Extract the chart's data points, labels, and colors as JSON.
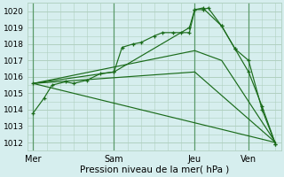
{
  "title": "Pression niveau de la mer( hPa )",
  "bg_color": "#d6eeee",
  "grid_color": "#b0d0c0",
  "line_color": "#1a6b1a",
  "ylim": [
    1011.5,
    1020.5
  ],
  "yticks": [
    1012,
    1013,
    1014,
    1015,
    1016,
    1017,
    1018,
    1019,
    1020
  ],
  "xtick_labels": [
    "Mer",
    "Sam",
    "Jeu",
    "Ven"
  ],
  "xtick_positions": [
    0,
    3,
    6,
    8
  ],
  "xlim": [
    -0.2,
    9.2
  ],
  "vlines": [
    0,
    3,
    6,
    8
  ],
  "vline_color": "#5a9a6a",
  "series": [
    {
      "x": [
        0,
        0.4,
        0.7,
        1.2,
        1.5,
        2.0,
        2.5,
        3.0,
        3.3,
        3.7,
        4.0,
        4.5,
        4.8,
        5.2,
        5.5,
        5.8,
        6.0,
        6.3,
        6.5,
        7.0,
        7.5,
        8.0,
        8.5,
        9.0
      ],
      "y": [
        1013.8,
        1014.7,
        1015.5,
        1015.7,
        1015.6,
        1015.8,
        1016.2,
        1016.3,
        1017.8,
        1018.0,
        1018.1,
        1018.5,
        1018.7,
        1018.7,
        1018.7,
        1018.7,
        1020.1,
        1020.1,
        1020.2,
        1019.1,
        1017.7,
        1017.0,
        1014.0,
        1011.9
      ],
      "marker": true
    },
    {
      "x": [
        0,
        3.0,
        5.8,
        6.0,
        6.3,
        7.0,
        7.5,
        8.0,
        8.5,
        9.0
      ],
      "y": [
        1015.6,
        1016.3,
        1019.0,
        1020.1,
        1020.2,
        1019.1,
        1017.7,
        1016.3,
        1014.2,
        1011.9
      ],
      "marker": true
    },
    {
      "x": [
        0,
        6.0,
        7.0,
        9.0
      ],
      "y": [
        1015.6,
        1017.6,
        1017.0,
        1012.0
      ],
      "marker": false
    },
    {
      "x": [
        0,
        6.0,
        9.0
      ],
      "y": [
        1015.6,
        1016.3,
        1012.0
      ],
      "marker": false
    },
    {
      "x": [
        0,
        9.0
      ],
      "y": [
        1015.6,
        1012.0
      ],
      "marker": false
    }
  ]
}
